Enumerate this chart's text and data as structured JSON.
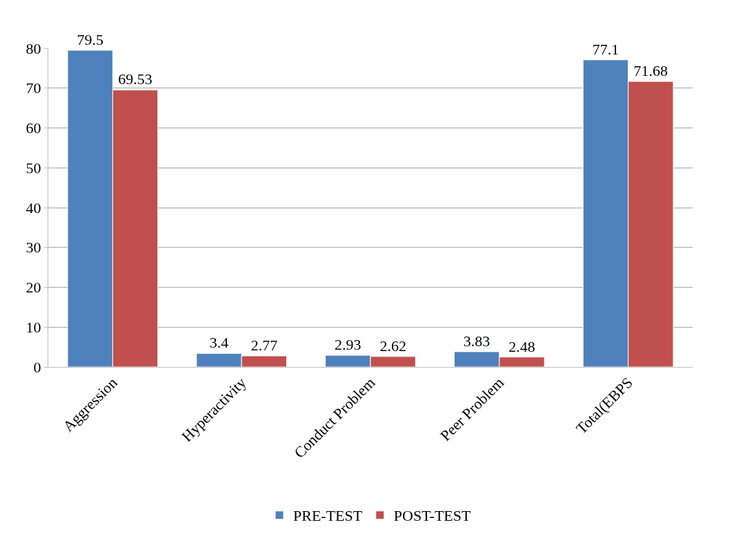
{
  "chart_data": {
    "type": "bar",
    "categories": [
      "Aggression",
      "Hyperactivity",
      "Conduct Problem",
      "Peer Problem",
      "Total(EBPS"
    ],
    "series": [
      {
        "name": "PRE-TEST",
        "color": "#4f81bd",
        "values": [
          79.5,
          3.4,
          2.93,
          3.83,
          77.1
        ]
      },
      {
        "name": "POST-TEST",
        "color": "#c0504d",
        "values": [
          69.53,
          2.77,
          2.62,
          2.48,
          71.68
        ]
      }
    ],
    "ylim": [
      0,
      80
    ],
    "yticks": [
      0,
      10,
      20,
      30,
      40,
      50,
      60,
      70,
      80
    ],
    "grid": "y",
    "legend": "bottom",
    "data_labels": true
  }
}
